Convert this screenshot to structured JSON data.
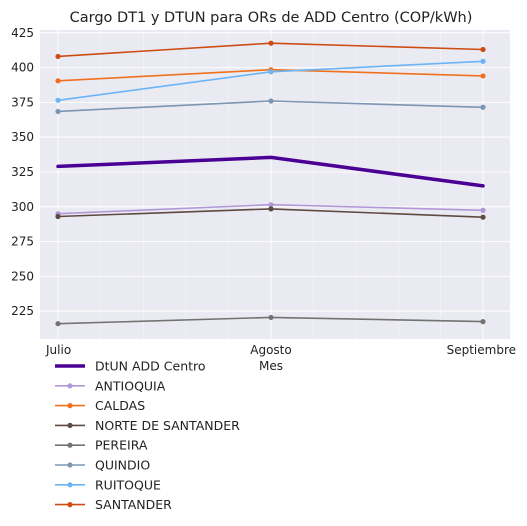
{
  "chart_data": {
    "type": "line",
    "title": "Cargo DT1 y DTUN para ORs de ADD Centro (COP/kWh)",
    "xlabel": "Mes",
    "ylabel": "",
    "categories": [
      "Julio",
      "Agosto",
      "Septiembre"
    ],
    "ylim": [
      205,
      427
    ],
    "yticks": [
      225,
      250,
      275,
      300,
      325,
      350,
      375,
      400,
      425
    ],
    "grid": true,
    "legend_position": "below",
    "series": [
      {
        "name": "DtUN ADD Centro",
        "values": [
          329,
          335.5,
          315
        ],
        "color": "#4b0095",
        "emphasis": true
      },
      {
        "name": "ANTIOQUIA",
        "values": [
          295,
          301.5,
          297.5
        ],
        "color": "#b297d8"
      },
      {
        "name": "CALDAS",
        "values": [
          390.5,
          398.5,
          394
        ],
        "color": "#f0701f"
      },
      {
        "name": "NORTE DE SANTANDER",
        "values": [
          293,
          298.5,
          292.5
        ],
        "color": "#5e4a41"
      },
      {
        "name": "PEREIRA",
        "values": [
          216,
          220.5,
          217.5
        ],
        "color": "#737373"
      },
      {
        "name": "QUINDIO",
        "values": [
          368.5,
          376,
          371.5
        ],
        "color": "#7b95b3"
      },
      {
        "name": "RUITOQUE",
        "values": [
          376.5,
          397,
          404.5
        ],
        "color": "#6cb4f5"
      },
      {
        "name": "SANTANDER",
        "values": [
          408,
          417.5,
          413
        ],
        "color": "#cc4c14"
      }
    ]
  }
}
